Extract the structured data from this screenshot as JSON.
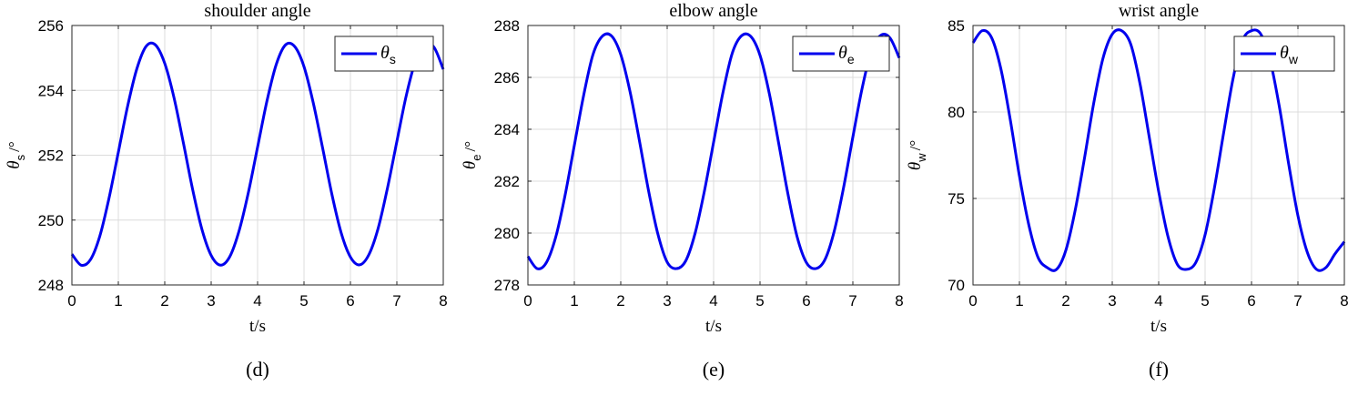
{
  "colors": {
    "series": "#0000ee",
    "grid": "#dcdcdc",
    "axis": "#262626"
  },
  "chart_data": [
    {
      "type": "line",
      "title": "shoulder angle",
      "caption": "(d)",
      "xlabel": "t/s",
      "ylabel": {
        "symbol": "θ",
        "sub": "s",
        "unit": "/°"
      },
      "legend": {
        "symbol": "θ",
        "sub": "s",
        "placement": "top-right"
      },
      "grid": true,
      "xlim": [
        0,
        8
      ],
      "ylim": [
        248,
        256
      ],
      "xticks": [
        "0",
        "1",
        "2",
        "3",
        "4",
        "5",
        "6",
        "7",
        "8"
      ],
      "yticks": [
        "248",
        "250",
        "252",
        "254",
        "256"
      ],
      "series": [
        {
          "x": [
            0,
            0.2,
            0.4,
            0.6,
            0.8,
            1.0,
            1.2,
            1.4,
            1.6,
            1.8,
            2.0,
            2.2,
            2.4,
            2.6,
            2.8,
            3.0,
            3.2,
            3.4,
            3.6,
            3.8,
            4.0,
            4.2,
            4.4,
            4.6,
            4.8,
            5.0,
            5.2,
            5.4,
            5.6,
            5.8,
            6.0,
            6.2,
            6.4,
            6.6,
            6.8,
            7.0,
            7.2,
            7.4,
            7.6,
            7.8,
            8.0
          ],
          "y": [
            248.95,
            248.61,
            248.78,
            249.5,
            250.68,
            252.09,
            253.51,
            254.67,
            255.36,
            255.4,
            254.83,
            253.77,
            252.39,
            250.95,
            249.72,
            248.91,
            248.61,
            248.87,
            249.66,
            250.84,
            252.25,
            253.66,
            254.79,
            255.4,
            255.35,
            254.73,
            253.61,
            252.23,
            250.8,
            249.61,
            248.86,
            248.62,
            248.94,
            249.76,
            251.0,
            252.42,
            253.82,
            254.89,
            255.4,
            255.33,
            254.65
          ]
        }
      ]
    },
    {
      "type": "line",
      "title": "elbow angle",
      "caption": "(e)",
      "xlabel": "t/s",
      "ylabel": {
        "symbol": "θ",
        "sub": "e",
        "unit": "/°"
      },
      "legend": {
        "symbol": "θ",
        "sub": "e",
        "placement": "top-right"
      },
      "grid": true,
      "xlim": [
        0,
        8
      ],
      "ylim": [
        278,
        288
      ],
      "xticks": [
        "0",
        "1",
        "2",
        "3",
        "4",
        "5",
        "6",
        "7",
        "8"
      ],
      "yticks": [
        "278",
        "280",
        "282",
        "284",
        "286",
        "288"
      ],
      "series": [
        {
          "x": [
            0,
            0.2,
            0.4,
            0.6,
            0.8,
            1.0,
            1.2,
            1.4,
            1.6,
            1.8,
            2.0,
            2.2,
            2.4,
            2.6,
            2.8,
            3.0,
            3.2,
            3.4,
            3.6,
            3.8,
            4.0,
            4.2,
            4.4,
            4.6,
            4.8,
            5.0,
            5.2,
            5.4,
            5.6,
            5.8,
            6.0,
            6.2,
            6.4,
            6.6,
            6.8,
            7.0,
            7.2,
            7.4,
            7.6,
            7.8,
            8.0
          ],
          "y": [
            279.1,
            278.63,
            278.87,
            279.85,
            281.45,
            283.38,
            285.3,
            286.87,
            287.58,
            287.6,
            286.88,
            285.45,
            283.58,
            281.62,
            279.96,
            278.88,
            278.63,
            278.93,
            279.98,
            281.6,
            283.5,
            285.4,
            286.92,
            287.6,
            287.58,
            286.85,
            285.38,
            283.48,
            281.52,
            279.85,
            278.86,
            278.63,
            278.98,
            280.08,
            281.75,
            283.7,
            285.58,
            287.02,
            287.62,
            287.52,
            286.75
          ]
        }
      ]
    },
    {
      "type": "line",
      "title": "wrist angle",
      "caption": "(f)",
      "xlabel": "t/s",
      "ylabel": {
        "symbol": "θ",
        "sub": "w",
        "unit": "/°"
      },
      "legend": {
        "symbol": "θ",
        "sub": "w",
        "placement": "top-right"
      },
      "grid": true,
      "xlim": [
        0,
        8
      ],
      "ylim": [
        70,
        85
      ],
      "xticks": [
        "0",
        "1",
        "2",
        "3",
        "4",
        "5",
        "6",
        "7",
        "8"
      ],
      "yticks": [
        "70",
        "75",
        "80",
        "85"
      ],
      "series": [
        {
          "x": [
            0,
            0.2,
            0.4,
            0.6,
            0.8,
            1.0,
            1.2,
            1.4,
            1.6,
            1.8,
            2.0,
            2.2,
            2.4,
            2.6,
            2.8,
            3.0,
            3.2,
            3.4,
            3.6,
            3.8,
            4.0,
            4.2,
            4.4,
            4.6,
            4.8,
            5.0,
            5.2,
            5.4,
            5.6,
            5.8,
            6.0,
            6.2,
            6.4,
            6.6,
            6.8,
            7.0,
            7.2,
            7.4,
            7.6,
            7.8,
            8.0
          ],
          "y": [
            84.0,
            84.7,
            84.3,
            82.5,
            79.6,
            76.3,
            73.5,
            71.6,
            71.0,
            70.9,
            72.0,
            74.3,
            77.3,
            80.5,
            83.1,
            84.5,
            84.7,
            83.9,
            81.6,
            78.5,
            75.4,
            72.8,
            71.2,
            70.9,
            71.3,
            72.9,
            75.6,
            78.8,
            81.9,
            84.1,
            84.7,
            84.5,
            83.0,
            80.3,
            77.0,
            74.0,
            71.9,
            70.9,
            71.0,
            71.8,
            72.5
          ]
        }
      ]
    }
  ]
}
